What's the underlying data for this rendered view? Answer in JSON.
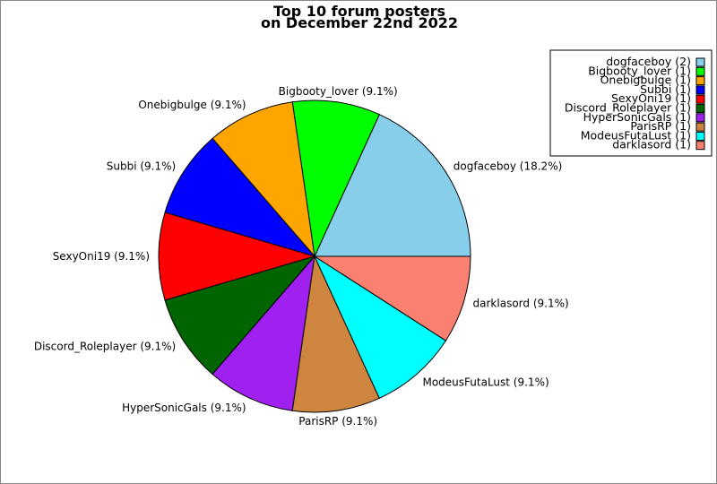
{
  "chart_data": {
    "type": "pie",
    "title": "Top 10 forum posters",
    "subtitle": "on December 22nd 2022",
    "legend_position": "top-right",
    "slices": [
      {
        "name": "dogfaceboy",
        "value": 2,
        "percent": "18.2%",
        "legend": "dogfaceboy (2)",
        "label": "dogfaceboy (18.2%)",
        "color": "#87ceeb"
      },
      {
        "name": "Bigbooty_lover",
        "value": 1,
        "percent": "9.1%",
        "legend": "Bigbooty_lover (1)",
        "label": "Bigbooty_lover (9.1%)",
        "color": "#00ff00"
      },
      {
        "name": "Onebigbulge",
        "value": 1,
        "percent": "9.1%",
        "legend": "Onebigbulge (1)",
        "label": "Onebigbulge (9.1%)",
        "color": "#ffa500"
      },
      {
        "name": "Subbi",
        "value": 1,
        "percent": "9.1%",
        "legend": "Subbi (1)",
        "label": "Subbi (9.1%)",
        "color": "#0000ff"
      },
      {
        "name": "SexyOni19",
        "value": 1,
        "percent": "9.1%",
        "legend": "SexyOni19 (1)",
        "label": "SexyOni19 (9.1%)",
        "color": "#ff0000"
      },
      {
        "name": "Discord_Roleplayer",
        "value": 1,
        "percent": "9.1%",
        "legend": "Discord_Roleplayer (1)",
        "label": "Discord_Roleplayer (9.1%)",
        "color": "#006400"
      },
      {
        "name": "HyperSonicGals",
        "value": 1,
        "percent": "9.1%",
        "legend": "HyperSonicGals (1)",
        "label": "HyperSonicGals (9.1%)",
        "color": "#a020f0"
      },
      {
        "name": "ParisRP",
        "value": 1,
        "percent": "9.1%",
        "legend": "ParisRP (1)",
        "label": "ParisRP (9.1%)",
        "color": "#cd853f"
      },
      {
        "name": "ModeusFutaLust",
        "value": 1,
        "percent": "9.1%",
        "legend": "ModeusFutaLust (1)",
        "label": "ModeusFutaLust (9.1%)",
        "color": "#00ffff"
      },
      {
        "name": "darklasord",
        "value": 1,
        "percent": "9.1%",
        "legend": "darklasord (1)",
        "label": "darklasord (9.1%)",
        "color": "#fa8072"
      }
    ]
  }
}
